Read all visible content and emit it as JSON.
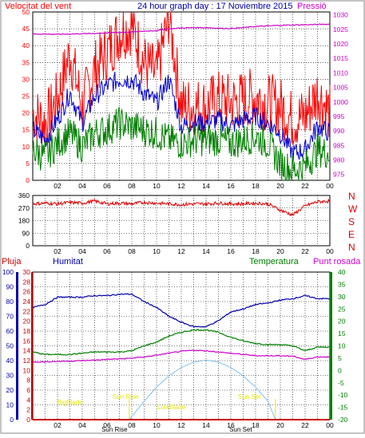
{
  "header": {
    "left_label": "Velocitat del vent",
    "title": "24 hour graph day : 17 Noviembre 2015",
    "right_label": "Pressió"
  },
  "colors": {
    "wind_max": "#ff0000",
    "wind_avg": "#0000cc",
    "wind_min": "#008000",
    "pressure": "#cc00cc",
    "direction": "#dd0000",
    "humidity": "#0000aa",
    "temperature": "#008000",
    "dew_point": "#cc00cc",
    "rain": "#cc0000",
    "sun": "#7fbfef",
    "sun_label": "#e6e600",
    "grid": "#000000"
  },
  "chart_data": [
    {
      "type": "line",
      "x_ticks": [
        "02",
        "04",
        "06",
        "08",
        "10",
        "12",
        "14",
        "16",
        "18",
        "20",
        "22",
        "00"
      ],
      "left_axis": {
        "label": "Velocitat del vent",
        "ticks": [
          0,
          5,
          10,
          15,
          20,
          25,
          30,
          35,
          40,
          45,
          50
        ],
        "ylim": [
          0,
          50
        ]
      },
      "right_axis": {
        "label": "Pressió",
        "ticks": [
          975,
          980,
          985,
          990,
          995,
          1000,
          1005,
          1010,
          1015,
          1020,
          1025,
          1030
        ],
        "ylim": [
          973,
          1031
        ]
      },
      "grid": true,
      "series": [
        {
          "key": "wind_max",
          "x": [
            0,
            1,
            2,
            3,
            4,
            5,
            6,
            7,
            8,
            9,
            10,
            11,
            12,
            13,
            14,
            15,
            16,
            17,
            18,
            19,
            20,
            21,
            22,
            23,
            24
          ],
          "values": [
            20,
            17,
            24,
            38,
            22,
            33,
            38,
            44,
            46,
            35,
            31,
            49,
            22,
            22,
            22,
            24,
            23,
            24,
            25,
            23,
            22,
            18,
            19,
            26,
            20
          ]
        },
        {
          "key": "wind_avg",
          "x": [
            0,
            1,
            2,
            3,
            4,
            5,
            6,
            7,
            8,
            9,
            10,
            11,
            12,
            13,
            14,
            15,
            16,
            17,
            18,
            19,
            20,
            21,
            22,
            23,
            24
          ],
          "values": [
            15,
            12,
            18,
            26,
            17,
            25,
            28,
            30,
            30,
            26,
            23,
            30,
            16,
            17,
            17,
            18,
            16,
            18,
            19,
            17,
            14,
            8,
            9,
            16,
            14
          ]
        },
        {
          "key": "wind_min",
          "x": [
            0,
            1,
            2,
            3,
            4,
            5,
            6,
            7,
            8,
            9,
            10,
            11,
            12,
            13,
            14,
            15,
            16,
            17,
            18,
            19,
            20,
            21,
            22,
            23,
            24
          ],
          "values": [
            9,
            7,
            11,
            14,
            10,
            14,
            15,
            17,
            16,
            15,
            14,
            12,
            11,
            12,
            12,
            12,
            11,
            12,
            13,
            11,
            5,
            3,
            4,
            9,
            8
          ]
        },
        {
          "key": "pressure",
          "axis": "right",
          "x": [
            0,
            1,
            2,
            3,
            4,
            5,
            6,
            7,
            8,
            9,
            10,
            11,
            12,
            13,
            14,
            15,
            16,
            17,
            18,
            19,
            20,
            21,
            22,
            23,
            24
          ],
          "values": [
            1023.4,
            1023.4,
            1023.3,
            1023.4,
            1023.5,
            1023.6,
            1023.8,
            1024.0,
            1024.1,
            1024.4,
            1024.6,
            1025.2,
            1025.5,
            1025.6,
            1025.6,
            1025.4,
            1025.3,
            1025.6,
            1026.0,
            1026.2,
            1026.4,
            1026.5,
            1026.6,
            1026.7,
            1026.8
          ]
        }
      ]
    },
    {
      "type": "line",
      "x_ticks": [
        "02",
        "04",
        "06",
        "08",
        "10",
        "12",
        "14",
        "16",
        "18",
        "20",
        "22",
        "00"
      ],
      "left_axis": {
        "ticks": [
          0,
          90,
          180,
          270,
          360
        ],
        "ylim": [
          0,
          360
        ]
      },
      "right_labels": [
        "N",
        "W",
        "S",
        "E",
        "N"
      ],
      "grid": true,
      "series": [
        {
          "key": "direction",
          "x": [
            0,
            1,
            2,
            3,
            4,
            5,
            6,
            7,
            8,
            9,
            10,
            11,
            12,
            13,
            14,
            15,
            16,
            17,
            18,
            19,
            20,
            21,
            22,
            23,
            24
          ],
          "values": [
            300,
            305,
            300,
            310,
            305,
            320,
            300,
            305,
            300,
            310,
            305,
            300,
            295,
            300,
            300,
            305,
            300,
            300,
            305,
            300,
            255,
            220,
            285,
            315,
            320
          ]
        }
      ]
    },
    {
      "type": "line",
      "labels": {
        "rain": "Pluja",
        "humidity": "Humitat",
        "temperature": "Temperatura",
        "dew_point": "Punt rosada"
      },
      "x_ticks": [
        "02",
        "04",
        "06",
        "08",
        "10",
        "12",
        "14",
        "16",
        "18",
        "20",
        "22",
        "00"
      ],
      "humidity_axis": {
        "ticks": [
          0,
          10,
          20,
          30,
          40,
          50,
          60,
          70,
          80,
          90,
          100
        ],
        "ylim": [
          0,
          100
        ]
      },
      "rain_axis": {
        "ticks": [
          0,
          2,
          4,
          6,
          8,
          10,
          12,
          14,
          16,
          18,
          20,
          22,
          24,
          26,
          28,
          30
        ],
        "ylim": [
          0,
          30
        ]
      },
      "temperature_axis": {
        "ticks": [
          -20,
          -15,
          -10,
          -5,
          0,
          5,
          10,
          15,
          20,
          25,
          30,
          35,
          40
        ],
        "ylim": [
          -20,
          40
        ]
      },
      "grid": true,
      "series": [
        {
          "key": "humidity",
          "axis": "humidity",
          "x": [
            0,
            1,
            2,
            3,
            4,
            5,
            6,
            7,
            8,
            9,
            10,
            11,
            12,
            13,
            14,
            15,
            16,
            17,
            18,
            19,
            20,
            21,
            22,
            23,
            24
          ],
          "values": [
            76,
            78,
            83,
            83,
            83,
            84,
            84,
            85,
            85,
            80,
            76,
            70,
            66,
            63,
            63,
            67,
            73,
            75,
            78,
            79,
            81,
            82,
            84,
            82,
            82
          ]
        },
        {
          "key": "temperature",
          "axis": "temperature",
          "x": [
            0,
            1,
            2,
            3,
            4,
            5,
            6,
            7,
            8,
            9,
            10,
            11,
            12,
            13,
            14,
            15,
            16,
            17,
            18,
            19,
            20,
            21,
            22,
            23,
            24
          ],
          "values": [
            7.5,
            6.5,
            6.5,
            6.5,
            7,
            7.5,
            7.5,
            7.5,
            8,
            10,
            11.5,
            14,
            15.5,
            16.5,
            16.5,
            15.5,
            13.5,
            12,
            11,
            10.5,
            10.5,
            10,
            8,
            9.5,
            9.5
          ]
        },
        {
          "key": "dew_point",
          "axis": "temperature",
          "x": [
            0,
            1,
            2,
            3,
            4,
            5,
            6,
            7,
            8,
            9,
            10,
            11,
            12,
            13,
            14,
            15,
            16,
            17,
            18,
            19,
            20,
            21,
            22,
            23,
            24
          ],
          "values": [
            3.5,
            3.5,
            3.7,
            3.8,
            4,
            4.2,
            4.5,
            4.7,
            5,
            5.5,
            6.2,
            7,
            7.8,
            8.2,
            8,
            7.5,
            7,
            6.5,
            6,
            6,
            6,
            5.8,
            4.5,
            5.5,
            5.5
          ]
        },
        {
          "key": "sun",
          "axis": "temperature",
          "x": [
            7.8,
            9,
            10,
            11,
            12,
            13,
            14,
            15,
            16,
            17,
            18,
            19,
            19.6
          ],
          "values": [
            -20,
            -12.5,
            -6.8,
            -2.2,
            1.2,
            3.4,
            4.2,
            3.4,
            1.2,
            -2.2,
            -6.8,
            -12.5,
            -20
          ]
        },
        {
          "key": "rain",
          "axis": "rain",
          "x": [
            0,
            24
          ],
          "values": [
            0,
            0
          ]
        }
      ],
      "annotations": [
        {
          "text": "BigBlade",
          "x": 3
        },
        {
          "text": "Sun Rise",
          "x": 7.5
        },
        {
          "text": "Sun Rise",
          "x": 6.6
        },
        {
          "text": "LowBlade",
          "x": 11.2
        },
        {
          "text": "Sun Set",
          "x": 17.5
        },
        {
          "text": "Sun Set",
          "x": 16.8
        }
      ]
    }
  ]
}
